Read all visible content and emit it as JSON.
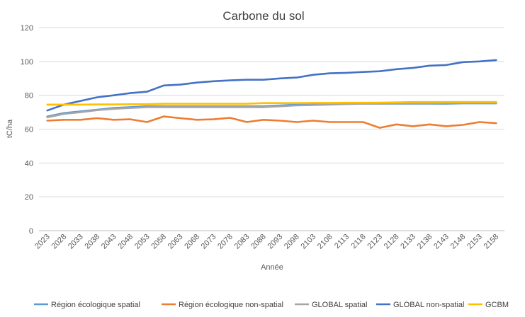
{
  "chart_data": {
    "type": "line",
    "title": "Carbone du sol",
    "xlabel": "Année",
    "ylabel": "tC/ha",
    "ylim": [
      0,
      120
    ],
    "yticks": [
      0,
      20,
      40,
      60,
      80,
      100,
      120
    ],
    "grid": true,
    "legend_position": "bottom",
    "categories": [
      "2023",
      "2028",
      "2033",
      "2038",
      "2043",
      "2048",
      "2053",
      "2058",
      "2063",
      "2068",
      "2073",
      "2078",
      "2083",
      "2088",
      "2093",
      "2098",
      "2103",
      "2108",
      "2113",
      "2118",
      "2123",
      "2128",
      "2133",
      "2138",
      "2143",
      "2148",
      "2153",
      "2158"
    ],
    "series": [
      {
        "name": "Région écologique spatial",
        "color": "#5B9BD5",
        "values": [
          67.5,
          69.5,
          70.5,
          71.5,
          72.5,
          73,
          73.5,
          73.5,
          73.5,
          73.5,
          73.5,
          73.5,
          73.5,
          73.5,
          74,
          74.5,
          74.5,
          74.8,
          75,
          75,
          75,
          75,
          75,
          75,
          75,
          75.2,
          75.2,
          75.2
        ]
      },
      {
        "name": "Région écologique non-spatial",
        "color": "#ED7D31",
        "values": [
          65,
          65.5,
          65.5,
          66.5,
          65.5,
          65.8,
          64.2,
          67.5,
          66.5,
          65.5,
          65.8,
          66.7,
          64.2,
          65.5,
          65,
          64.2,
          65,
          64.2,
          64.2,
          64.2,
          60.8,
          62.8,
          61.7,
          62.8,
          61.7,
          62.5,
          64.2,
          63.5
        ]
      },
      {
        "name": "GLOBAL spatial",
        "color": "#A5A5A5",
        "values": [
          67,
          69,
          70,
          71.2,
          72,
          72.5,
          73,
          73,
          73,
          73,
          73,
          73,
          73,
          73,
          73.5,
          74,
          74.2,
          74.5,
          74.8,
          75,
          75,
          75.2,
          75.2,
          75.2,
          75.5,
          75.5,
          75.5,
          75.5
        ]
      },
      {
        "name": "GLOBAL non-spatial",
        "color": "#4472C4",
        "values": [
          71,
          74.5,
          76.7,
          78.8,
          80,
          81.3,
          82.1,
          85.8,
          86.3,
          87.5,
          88.3,
          88.8,
          89.2,
          89.2,
          90,
          90.5,
          92.1,
          93,
          93.3,
          93.8,
          94.2,
          95.4,
          96.2,
          97.5,
          97.9,
          99.6,
          100,
          100.8
        ]
      },
      {
        "name": "GCBM",
        "color": "#FFC000",
        "values": [
          74.5,
          74.5,
          74.5,
          74.6,
          74.6,
          74.7,
          74.7,
          75,
          75,
          75,
          75,
          75,
          75,
          75.4,
          75.4,
          75.4,
          75.5,
          75.5,
          75.6,
          75.6,
          75.7,
          75.8,
          76,
          76,
          76,
          76,
          76,
          76
        ]
      }
    ]
  }
}
